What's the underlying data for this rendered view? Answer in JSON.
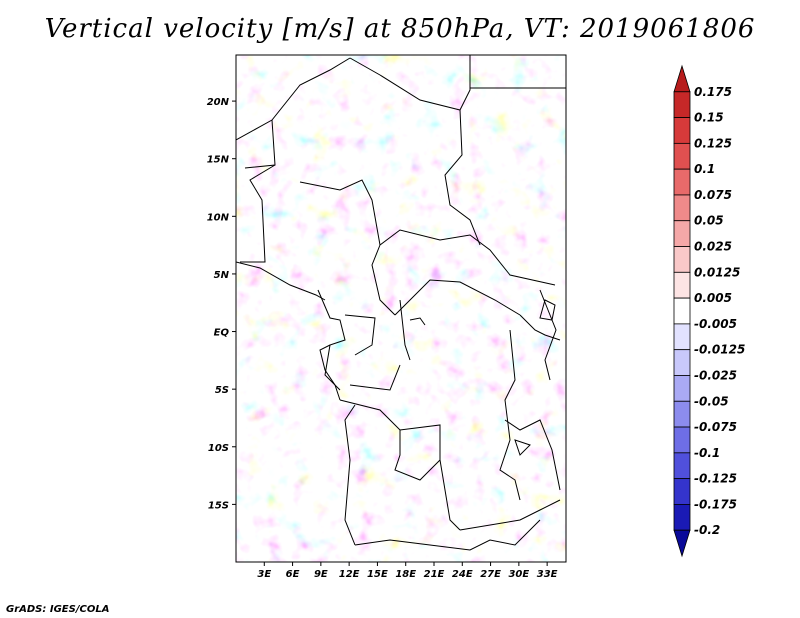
{
  "chart_data": {
    "type": "heatmap",
    "title": "Vertical velocity [m/s] at 850hPa, VT: 2019061806",
    "xlabel": "",
    "ylabel": "",
    "variable": "Vertical velocity",
    "units": "m/s",
    "level": "850hPa",
    "valid_time": "2019061806",
    "x_ticks": [
      "3E",
      "6E",
      "9E",
      "12E",
      "15E",
      "18E",
      "21E",
      "24E",
      "27E",
      "30E",
      "33E"
    ],
    "y_ticks": [
      "20N",
      "15N",
      "10N",
      "5N",
      "EQ",
      "5S",
      "10S",
      "15S"
    ],
    "lon_range": [
      0,
      35
    ],
    "lat_range": [
      -20,
      24
    ],
    "colorbar": {
      "levels": [
        "0.175",
        "0.15",
        "0.125",
        "0.1",
        "0.075",
        "0.05",
        "0.025",
        "0.0125",
        "0.005",
        "-0.005",
        "-0.0125",
        "-0.025",
        "-0.05",
        "-0.075",
        "-0.1",
        "-0.125",
        "-0.175",
        "-0.2"
      ],
      "colors": [
        "#b71c1c",
        "#c62828",
        "#d63a3a",
        "#e05050",
        "#e86a6a",
        "#ef8a8a",
        "#f5a8a8",
        "#f9c8c8",
        "#fde4e4",
        "#ffffff",
        "#e2e2ff",
        "#c8c8fb",
        "#aaaaf5",
        "#8c8cee",
        "#6e6ee6",
        "#5050dc",
        "#3434cc",
        "#1a1ab5",
        "#0a0a99"
      ]
    }
  },
  "credit": "GrADS: IGES/COLA"
}
